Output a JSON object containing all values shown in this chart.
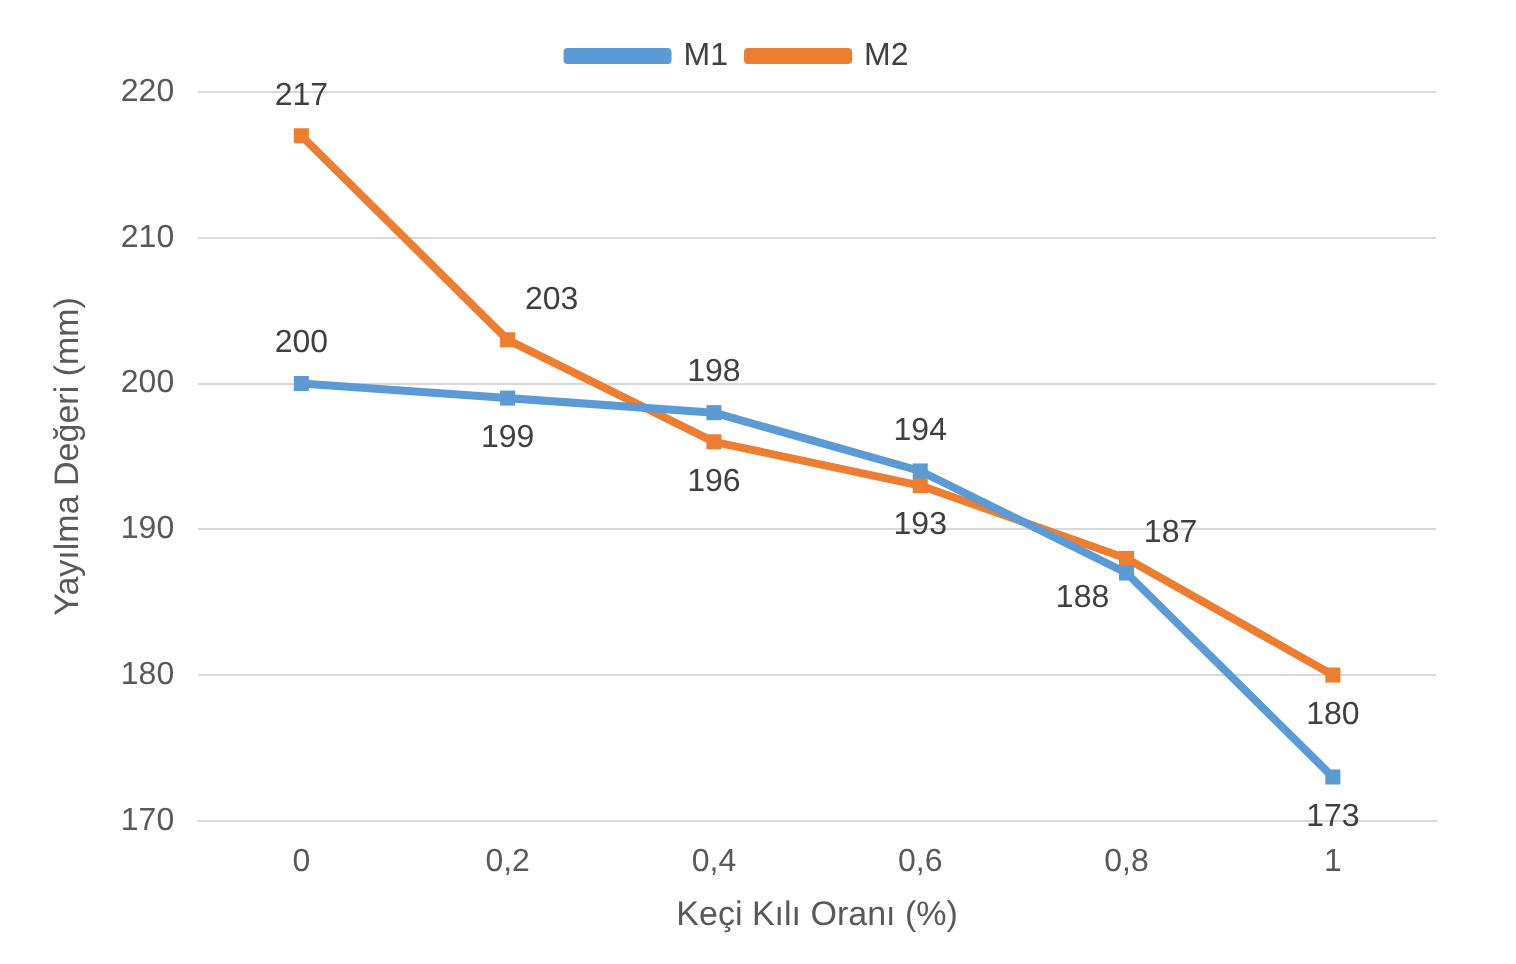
{
  "chart_data": {
    "type": "line",
    "xlabel": "Keçi Kılı Oranı (%)",
    "ylabel": "Yayılma Değeri (mm)",
    "categories": [
      "0",
      "0,2",
      "0,4",
      "0,6",
      "0,8",
      "1"
    ],
    "series": [
      {
        "name": "M1",
        "color": "#5b9bd5",
        "values": [
          200,
          199,
          198,
          194,
          187,
          173
        ]
      },
      {
        "name": "M2",
        "color": "#ed7d31",
        "values": [
          217,
          203,
          196,
          193,
          188,
          180
        ]
      }
    ],
    "ylim": [
      170,
      220
    ],
    "yticks": [
      170,
      180,
      190,
      200,
      210,
      220
    ],
    "grid": "y",
    "legend": "top",
    "data_labels": true,
    "marker": "square"
  }
}
